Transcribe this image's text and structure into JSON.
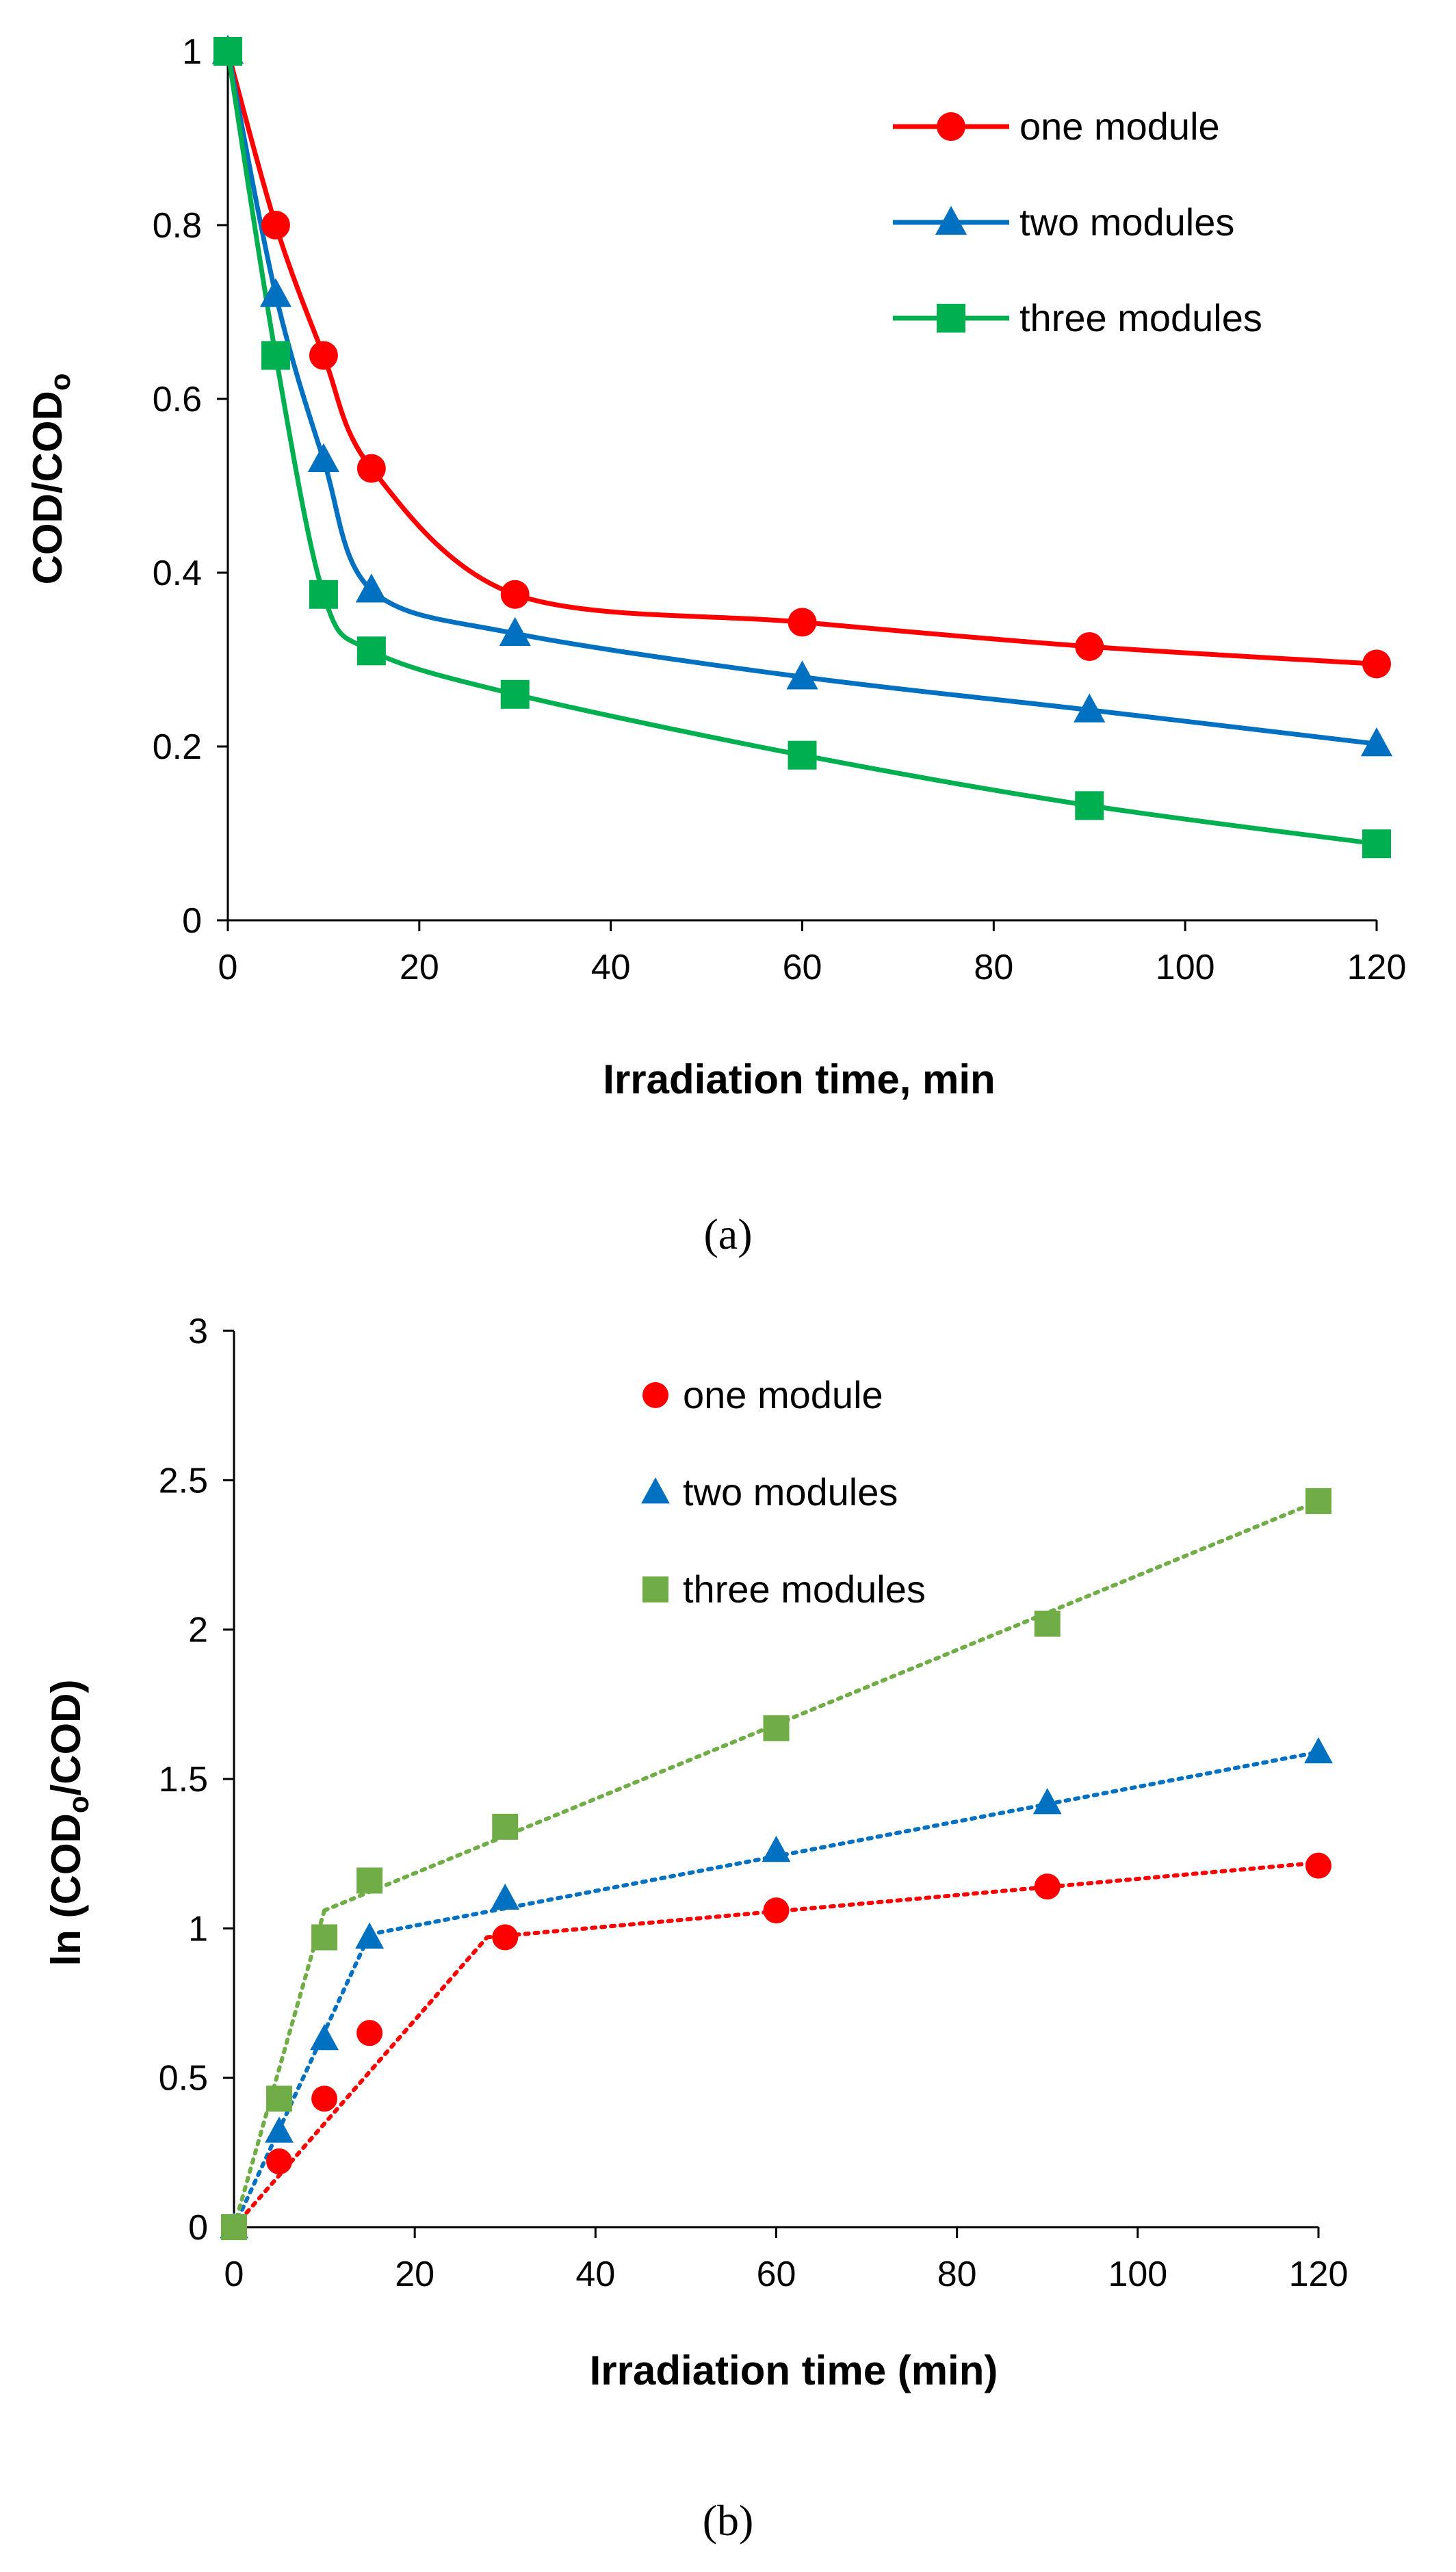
{
  "chart_data": [
    {
      "type": "line",
      "caption": "(a)",
      "xlabel": "Irradiation  time, min",
      "ylabel": "COD/COD",
      "ylabel_sub": "o",
      "xlim": [
        0,
        120
      ],
      "ylim": [
        0,
        1
      ],
      "xticks": [
        0,
        20,
        40,
        60,
        80,
        100,
        120
      ],
      "yticks": [
        0,
        0.2,
        0.4,
        0.6,
        0.8,
        1
      ],
      "ytick_labels": [
        "0",
        "0.2",
        "0.4",
        "0.6",
        "0.8",
        "1"
      ],
      "grid": false,
      "legend_position": "top-right",
      "line_style": "smooth",
      "x": [
        0,
        5,
        10,
        15,
        30,
        60,
        90,
        120
      ],
      "series": [
        {
          "name": "one module",
          "marker": "circle",
          "color": "#ff0000",
          "values": [
            1,
            0.8,
            0.65,
            0.52,
            0.375,
            0.343,
            0.315,
            0.295
          ]
        },
        {
          "name": "two modules",
          "marker": "triangle",
          "color": "#0070c0",
          "values": [
            1,
            0.72,
            0.53,
            0.38,
            0.33,
            0.28,
            0.242,
            0.203
          ]
        },
        {
          "name": "three modules",
          "marker": "square",
          "color": "#00b050",
          "values": [
            1,
            0.65,
            0.375,
            0.31,
            0.26,
            0.19,
            0.132,
            0.088
          ]
        }
      ]
    },
    {
      "type": "scatter",
      "caption": "(b)",
      "xlabel": "Irradiation time (min)",
      "ylabel": "ln (COD",
      "ylabel_sub": "o",
      "ylabel_end": "/COD)",
      "xlim": [
        0,
        120
      ],
      "ylim": [
        0,
        3
      ],
      "xticks": [
        0,
        20,
        40,
        60,
        80,
        100,
        120
      ],
      "yticks": [
        0,
        0.5,
        1,
        1.5,
        2,
        2.5,
        3
      ],
      "ytick_labels": [
        "0",
        "0.5",
        "1",
        "1.5",
        "2",
        "2.5",
        "3"
      ],
      "grid": false,
      "legend_position": "top-center",
      "line_style": "dotted piecewise linear fit",
      "x": [
        0,
        5,
        10,
        15,
        30,
        60,
        90,
        120
      ],
      "series": [
        {
          "name": "one module",
          "marker": "circle",
          "color": "#ff0000",
          "values": [
            0,
            0.22,
            0.43,
            0.65,
            0.97,
            1.06,
            1.14,
            1.21
          ],
          "fit_segments": [
            [
              [
                0,
                0
              ],
              [
                28,
                0.97
              ]
            ],
            [
              [
                28,
                0.97
              ],
              [
                120,
                1.22
              ]
            ]
          ]
        },
        {
          "name": "two modules",
          "marker": "triangle",
          "color": "#0070c0",
          "values": [
            0,
            0.32,
            0.63,
            0.97,
            1.1,
            1.26,
            1.42,
            1.59
          ],
          "fit_segments": [
            [
              [
                0,
                0
              ],
              [
                15,
                0.98
              ]
            ],
            [
              [
                15,
                0.98
              ],
              [
                120,
                1.59
              ]
            ]
          ]
        },
        {
          "name": "three modules",
          "marker": "square",
          "color": "#70ad47",
          "values": [
            0,
            0.43,
            0.97,
            1.16,
            1.34,
            1.67,
            2.02,
            2.43
          ],
          "fit_segments": [
            [
              [
                0,
                0
              ],
              [
                10,
                1.06
              ]
            ],
            [
              [
                10,
                1.06
              ],
              [
                120,
                2.43
              ]
            ]
          ]
        }
      ]
    }
  ]
}
